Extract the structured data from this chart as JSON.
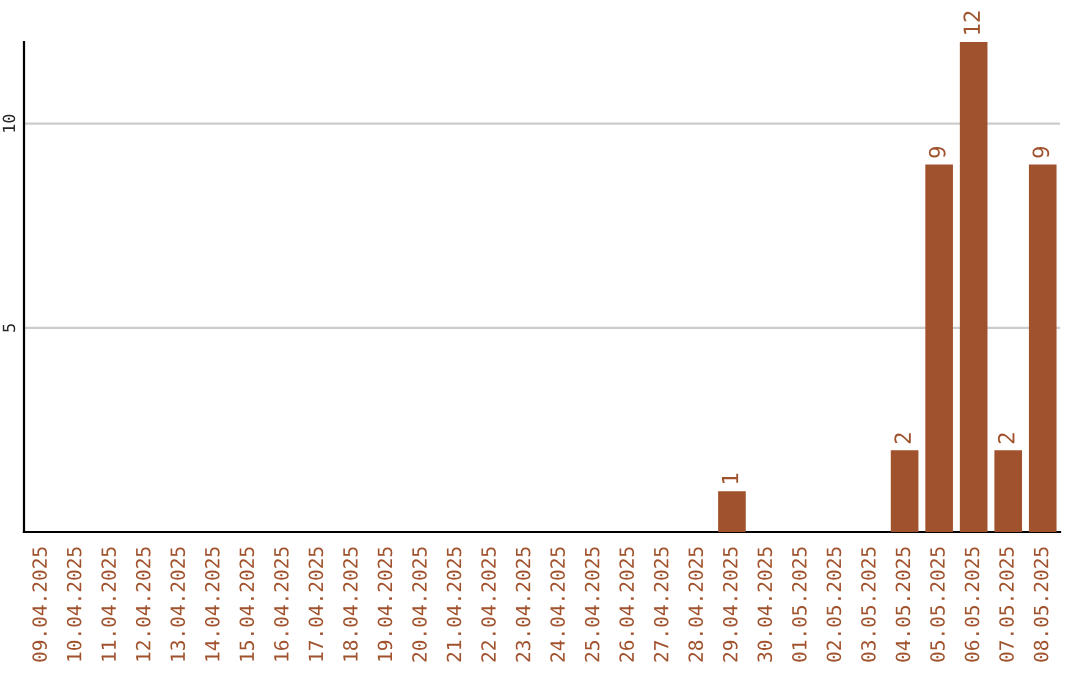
{
  "chart_data": {
    "type": "bar",
    "categories": [
      "09.04.2025",
      "10.04.2025",
      "11.04.2025",
      "12.04.2025",
      "13.04.2025",
      "14.04.2025",
      "15.04.2025",
      "16.04.2025",
      "17.04.2025",
      "18.04.2025",
      "19.04.2025",
      "20.04.2025",
      "21.04.2025",
      "22.04.2025",
      "23.04.2025",
      "24.04.2025",
      "25.04.2025",
      "26.04.2025",
      "27.04.2025",
      "28.04.2025",
      "29.04.2025",
      "30.04.2025",
      "01.05.2025",
      "02.05.2025",
      "03.05.2025",
      "04.05.2025",
      "05.05.2025",
      "06.05.2025",
      "07.05.2025",
      "08.05.2025"
    ],
    "values": [
      null,
      null,
      null,
      null,
      null,
      null,
      null,
      null,
      null,
      null,
      null,
      null,
      null,
      null,
      null,
      null,
      null,
      null,
      null,
      null,
      1,
      null,
      null,
      null,
      null,
      2,
      9,
      12,
      2,
      9
    ],
    "value_labels": [
      null,
      null,
      null,
      null,
      null,
      null,
      null,
      null,
      null,
      null,
      null,
      null,
      null,
      null,
      null,
      null,
      null,
      null,
      null,
      null,
      "1",
      null,
      null,
      null,
      null,
      "2",
      "9",
      "12",
      "2",
      "9"
    ],
    "color": "#a0522d",
    "ylim": [
      0,
      12
    ],
    "yticks": [
      5,
      10
    ],
    "grid": "y"
  }
}
